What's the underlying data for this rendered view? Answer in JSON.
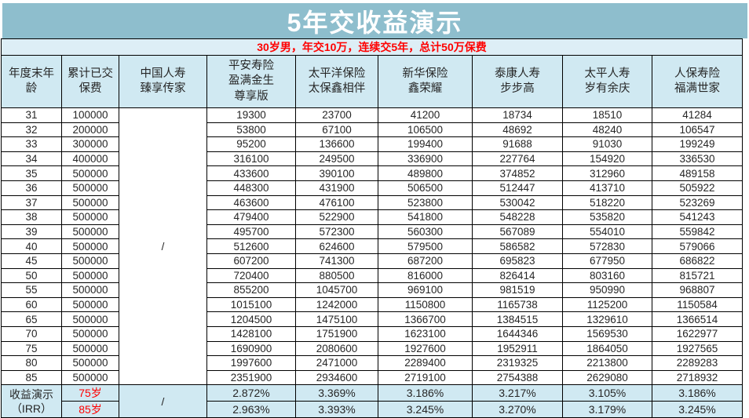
{
  "title": "5年交收益演示",
  "subtitle": "30岁男，年交10万，连续交5年，总计50万保费",
  "colors": {
    "title_bg": "#8ebecd",
    "subtitle_bg": "#ddeef6",
    "header_bg": "#d0e9f2",
    "footer_bg": "#d0e9f2",
    "red": "#ff0000",
    "text": "#262626"
  },
  "table": {
    "columns": [
      "年度末年\n龄",
      "累计已交\n保费",
      "中国人寿\n臻享传家",
      "平安寿险\n盈满金生\n尊享版",
      "太平洋保险\n太保鑫相伴",
      "新华保险\n鑫荣耀",
      "泰康人寿\n步步高",
      "太平人寿\n岁有余庆",
      "人保寿险\n福满世家"
    ],
    "china_life_placeholder": "/",
    "rows": [
      {
        "age": "31",
        "premium": "100000",
        "values": [
          "19300",
          "23700",
          "41200",
          "18734",
          "18510",
          "41284"
        ],
        "red": []
      },
      {
        "age": "32",
        "premium": "200000",
        "values": [
          "53800",
          "67100",
          "106500",
          "48692",
          "48240",
          "106547"
        ],
        "red": []
      },
      {
        "age": "33",
        "premium": "300000",
        "values": [
          "95200",
          "136600",
          "199400",
          "91688",
          "91030",
          "199249"
        ],
        "red": []
      },
      {
        "age": "34",
        "premium": "400000",
        "values": [
          "316100",
          "249500",
          "336900",
          "227764",
          "154920",
          "336530"
        ],
        "red": []
      },
      {
        "age": "35",
        "premium": "500000",
        "values": [
          "433600",
          "390100",
          "489800",
          "374852",
          "312960",
          "489158"
        ],
        "red": []
      },
      {
        "age": "36",
        "premium": "500000",
        "values": [
          "448300",
          "431900",
          "506500",
          "512447",
          "413710",
          "505922"
        ],
        "red": [
          2,
          3,
          5
        ]
      },
      {
        "age": "37",
        "premium": "500000",
        "values": [
          "463600",
          "476100",
          "523800",
          "530042",
          "518220",
          "523269"
        ],
        "red": [
          4
        ]
      },
      {
        "age": "38",
        "premium": "500000",
        "values": [
          "479400",
          "522900",
          "541800",
          "548228",
          "535820",
          "541243"
        ],
        "red": [
          1
        ]
      },
      {
        "age": "39",
        "premium": "500000",
        "values": [
          "495700",
          "572300",
          "560300",
          "567089",
          "554010",
          "559842"
        ],
        "red": []
      },
      {
        "age": "40",
        "premium": "500000",
        "values": [
          "512600",
          "624600",
          "579500",
          "586582",
          "572830",
          "579066"
        ],
        "red": [
          0
        ]
      },
      {
        "age": "45",
        "premium": "500000",
        "values": [
          "607200",
          "741300",
          "687200",
          "695823",
          "677950",
          "686822"
        ],
        "red": []
      },
      {
        "age": "50",
        "premium": "500000",
        "values": [
          "720400",
          "880500",
          "816000",
          "826414",
          "803160",
          "815721"
        ],
        "red": []
      },
      {
        "age": "55",
        "premium": "500000",
        "values": [
          "855200",
          "1045700",
          "969100",
          "981519",
          "950990",
          "968807"
        ],
        "red": []
      },
      {
        "age": "60",
        "premium": "500000",
        "values": [
          "1015100",
          "1242000",
          "1150800",
          "1165738",
          "1125200",
          "1150584"
        ],
        "red": []
      },
      {
        "age": "65",
        "premium": "500000",
        "values": [
          "1204500",
          "1475100",
          "1366700",
          "1384515",
          "1329610",
          "1366514"
        ],
        "red": []
      },
      {
        "age": "70",
        "premium": "500000",
        "values": [
          "1428100",
          "1751900",
          "1623100",
          "1644346",
          "1569530",
          "1622977"
        ],
        "red": []
      },
      {
        "age": "75",
        "premium": "500000",
        "values": [
          "1690900",
          "2080600",
          "1927600",
          "1952911",
          "1864050",
          "1927565"
        ],
        "red": []
      },
      {
        "age": "80",
        "premium": "500000",
        "values": [
          "1997600",
          "2471000",
          "2289400",
          "2319325",
          "2213800",
          "2289283"
        ],
        "red": []
      },
      {
        "age": "85",
        "premium": "500000",
        "values": [
          "2351900",
          "2934600",
          "2719100",
          "2754388",
          "2629080",
          "2718932"
        ],
        "red": []
      }
    ],
    "footer": {
      "label": "收益演示\n（IRR）",
      "china_life_placeholder": "/",
      "rows": [
        {
          "age_label": "75岁",
          "values": [
            "2.872%",
            "3.369%",
            "3.186%",
            "3.217%",
            "3.105%",
            "3.186%"
          ]
        },
        {
          "age_label": "85岁",
          "values": [
            "2.963%",
            "3.393%",
            "3.245%",
            "3.270%",
            "3.179%",
            "3.245%"
          ]
        }
      ]
    }
  }
}
